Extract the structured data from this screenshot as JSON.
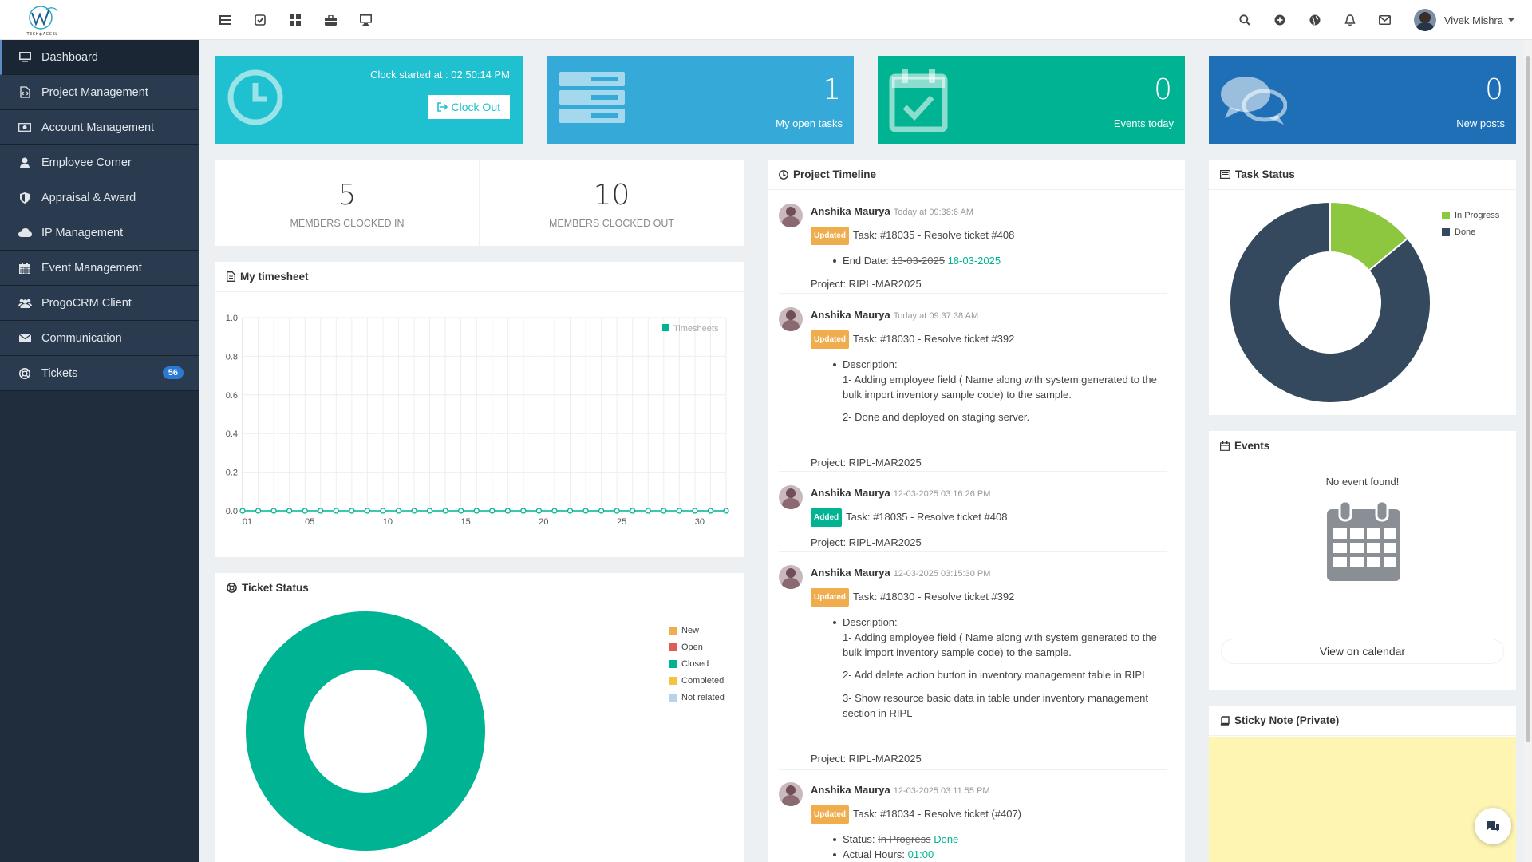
{
  "app": {
    "logo_text": "TECH◉ACCEL"
  },
  "topbar": {
    "left_icons": [
      "list-icon",
      "check-square-icon",
      "grid-icon",
      "briefcase-icon",
      "monitor-icon"
    ],
    "right_icons": [
      "search-icon",
      "plus-circle-icon",
      "globe-icon",
      "bell-icon",
      "mail-icon"
    ],
    "user_name": "Vivek Mishra"
  },
  "sidebar": {
    "items": [
      {
        "label": "Dashboard",
        "icon": "desktop-icon",
        "active": true
      },
      {
        "label": "Project Management",
        "icon": "code-file-icon"
      },
      {
        "label": "Account Management",
        "icon": "money-icon"
      },
      {
        "label": "Employee Corner",
        "icon": "user-icon"
      },
      {
        "label": "Appraisal & Award",
        "icon": "shield-icon"
      },
      {
        "label": "IP Management",
        "icon": "cloud-icon"
      },
      {
        "label": "Event Management",
        "icon": "calendar-icon"
      },
      {
        "label": "ProgoCRM Client",
        "icon": "users-icon"
      },
      {
        "label": "Communication",
        "icon": "envelope-icon"
      },
      {
        "label": "Tickets",
        "icon": "life-ring-icon",
        "badge": "56"
      }
    ]
  },
  "tiles": {
    "clock": {
      "text": "Clock started at : 02:50:14 PM",
      "button": "Clock Out",
      "color": "#1fc0cf"
    },
    "tasks": {
      "value": "1",
      "label": "My open tasks",
      "color": "#35a9d8"
    },
    "events": {
      "value": "0",
      "label": "Events today",
      "color": "#00b393"
    },
    "posts": {
      "value": "0",
      "label": "New posts",
      "color": "#1f6fb6"
    }
  },
  "members": {
    "clocked_in": {
      "value": "5",
      "label": "MEMBERS CLOCKED IN"
    },
    "clocked_out": {
      "value": "10",
      "label": "MEMBERS CLOCKED OUT"
    }
  },
  "timesheet": {
    "title": "My timesheet",
    "chart_data": {
      "type": "line",
      "series": [
        {
          "name": "Timesheets",
          "values": [
            0,
            0,
            0,
            0,
            0,
            0,
            0,
            0,
            0,
            0,
            0,
            0,
            0,
            0,
            0,
            0,
            0,
            0,
            0,
            0,
            0,
            0,
            0,
            0,
            0,
            0,
            0,
            0,
            0,
            0,
            0,
            0
          ]
        }
      ],
      "y_ticks": [
        "1.0",
        "0.8",
        "0.6",
        "0.4",
        "0.2",
        "0.0"
      ],
      "x_ticks": [
        "01",
        "05",
        "10",
        "15",
        "20",
        "25",
        "30"
      ],
      "ylim": [
        0,
        1
      ],
      "color": "#00b393"
    }
  },
  "ticket_status": {
    "title": "Ticket Status",
    "chart_data": {
      "type": "pie",
      "categories": [
        "New",
        "Open",
        "Closed",
        "Completed",
        "Not related"
      ],
      "values": [
        0,
        0,
        100,
        0,
        0
      ],
      "colors": [
        "#f0ad4e",
        "#e25c5c",
        "#00b393",
        "#f5c342",
        "#b8d4ea"
      ]
    }
  },
  "timeline": {
    "title": "Project Timeline",
    "entries": [
      {
        "name": "Anshika Maurya",
        "time": "Today at 09:38:6 AM",
        "tag": "Updated",
        "task": "Task: #18035 - Resolve ticket #408",
        "project": "Project: RIPL-MAR2025"
      },
      {
        "name": "Anshika Maurya",
        "time": "Today at 09:37:38 AM",
        "tag": "Updated",
        "task": "Task: #18030 - Resolve ticket #392",
        "project": "Project: RIPL-MAR2025"
      },
      {
        "name": "Anshika Maurya",
        "time": "12-03-2025 03:16:26 PM",
        "tag": "Added",
        "task": "Task: #18035 - Resolve ticket #408",
        "project": "Project: RIPL-MAR2025"
      },
      {
        "name": "Anshika Maurya",
        "time": "12-03-2025 03:15:30 PM",
        "tag": "Updated",
        "task": "Task: #18030 - Resolve ticket #392",
        "project": "Project: RIPL-MAR2025"
      },
      {
        "name": "Anshika Maurya",
        "time": "12-03-2025 03:11:55 PM",
        "tag": "Updated",
        "task": "Task: #18034 - Resolve ticket (#407)"
      }
    ],
    "e1": {
      "end_label": "End Date:",
      "old": "13-03-2025",
      "new": "18-03-2025"
    },
    "e2": {
      "desc": "Description:",
      "l1": "1- Adding employee field ( Name along with system generated to the",
      "l2": "bulk import inventory sample code) to the sample.",
      "l3": "2- Done and deployed on staging server."
    },
    "e4": {
      "desc": "Description:",
      "l1": "1- Adding employee field ( Name along with system generated to the",
      "l2": "bulk import inventory sample code) to the sample.",
      "l3": "2- Add delete action button in inventory management table in RIPL",
      "l4": "3- Show resource basic data in table under inventory management",
      "l5": "section in RIPL"
    },
    "e5": {
      "status_label": "Status:",
      "status_old": "In Progress",
      "status_new": "Done",
      "hours_label": "Actual Hours:",
      "hours": "01:00"
    }
  },
  "task_status": {
    "title": "Task Status",
    "chart_data": {
      "type": "pie",
      "categories": [
        "In Progress",
        "Done"
      ],
      "values": [
        14,
        86
      ],
      "colors": [
        "#8dc63f",
        "#34495e"
      ]
    }
  },
  "events_panel": {
    "title": "Events",
    "empty": "No event found!",
    "button": "View on calendar"
  },
  "sticky": {
    "title": "Sticky Note (Private)",
    "color": "#fdf5b1"
  }
}
